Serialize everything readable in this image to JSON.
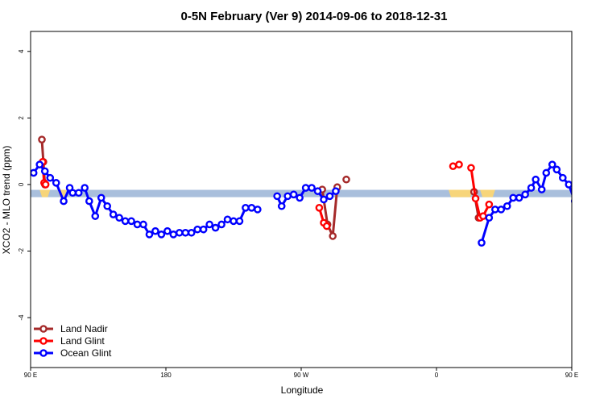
{
  "chart_data": {
    "type": "line",
    "title": "0-5N February (Ver 9)   2014-09-06 to 2018-12-31",
    "xlabel": "Longitude",
    "ylabel": "XCO2 - MLO trend (ppm)",
    "xlim": [
      90,
      450
    ],
    "ylim": [
      -5.5,
      4.6
    ],
    "xticks": [
      {
        "x": 90,
        "label": "90 E"
      },
      {
        "x": 180,
        "label": "180"
      },
      {
        "x": 270,
        "label": "90 W"
      },
      {
        "x": 360,
        "label": "0"
      },
      {
        "x": 450,
        "label": "90 E"
      },
      {
        "x": 540,
        "label": "180"
      }
    ],
    "yticks": [
      -4,
      -2,
      0,
      2,
      4
    ],
    "band": {
      "y_low": -0.38,
      "y_high": -0.16,
      "color": "#a9bfdc",
      "land_color": "#f7d57a",
      "land_segments": [
        [
          96,
          103
        ],
        [
          108,
          114
        ],
        [
          368,
          384
        ],
        [
          389,
          399
        ],
        [
          461,
          464
        ],
        [
          469,
          475
        ]
      ]
    },
    "legend": {
      "position": "bottom-left"
    },
    "series": [
      {
        "name": "Land Nadir",
        "color": "#a52a2a",
        "segments": [
          [
            [
              97.5,
              1.35
            ],
            [
              98.5,
              0.68
            ],
            [
              99.5,
              0.0
            ]
          ],
          [
            [
              284,
              -0.15
            ],
            [
              287.5,
              -1.2
            ],
            [
              291,
              -1.55
            ],
            [
              294,
              -0.08
            ]
          ],
          [
            [
              300,
              0.15
            ]
          ],
          [
            [
              385,
              -0.22
            ],
            [
              388,
              -1.0
            ]
          ],
          [
            [
              464.5,
              1.35
            ],
            [
              465.5,
              0.6
            ],
            [
              466.5,
              0.0
            ]
          ]
        ]
      },
      {
        "name": "Land Glint",
        "color": "#ff0000",
        "segments": [
          [
            [
              98,
              0.68
            ],
            [
              99,
              0.05
            ],
            [
              100,
              0.0
            ]
          ],
          [
            [
              282,
              -0.7
            ],
            [
              285,
              -1.15
            ],
            [
              287,
              -1.25
            ]
          ],
          [
            [
              371,
              0.55
            ],
            [
              375,
              0.6
            ]
          ],
          [
            [
              383,
              0.5
            ],
            [
              386,
              -0.42
            ],
            [
              389,
              -1.0
            ],
            [
              391,
              -0.95
            ],
            [
              395,
              -0.6
            ]
          ],
          [
            [
              465,
              0.65
            ],
            [
              466,
              0.05
            ],
            [
              467,
              0.0
            ]
          ]
        ]
      },
      {
        "name": "Ocean Glint",
        "color": "#0000ff",
        "segments": [
          [
            [
              92,
              0.35
            ],
            [
              96,
              0.6
            ],
            [
              99.5,
              0.4
            ],
            [
              103,
              0.2
            ],
            [
              107,
              0.05
            ],
            [
              112,
              -0.5
            ],
            [
              116,
              -0.1
            ],
            [
              118,
              -0.25
            ],
            [
              122,
              -0.25
            ],
            [
              126,
              -0.1
            ],
            [
              129,
              -0.5
            ],
            [
              133,
              -0.95
            ],
            [
              137,
              -0.4
            ],
            [
              141,
              -0.65
            ],
            [
              145,
              -0.9
            ],
            [
              149,
              -1.0
            ],
            [
              153,
              -1.1
            ],
            [
              157,
              -1.1
            ],
            [
              161,
              -1.2
            ],
            [
              165,
              -1.2
            ],
            [
              169,
              -1.5
            ],
            [
              173,
              -1.4
            ],
            [
              177,
              -1.5
            ],
            [
              181,
              -1.4
            ],
            [
              185,
              -1.5
            ],
            [
              189,
              -1.45
            ],
            [
              193,
              -1.45
            ],
            [
              197,
              -1.45
            ],
            [
              201,
              -1.35
            ],
            [
              205,
              -1.35
            ],
            [
              209,
              -1.2
            ],
            [
              213,
              -1.3
            ],
            [
              217,
              -1.2
            ],
            [
              221,
              -1.05
            ],
            [
              225,
              -1.1
            ],
            [
              229,
              -1.1
            ],
            [
              233,
              -0.7
            ],
            [
              237,
              -0.7
            ],
            [
              241,
              -0.75
            ]
          ],
          [
            [
              254,
              -0.35
            ],
            [
              257,
              -0.65
            ],
            [
              261,
              -0.35
            ],
            [
              265,
              -0.3
            ],
            [
              269,
              -0.4
            ],
            [
              273,
              -0.1
            ],
            [
              277,
              -0.1
            ],
            [
              281,
              -0.2
            ],
            [
              285,
              -0.45
            ],
            [
              289,
              -0.35
            ],
            [
              293,
              -0.2
            ]
          ],
          [
            [
              390,
              -1.75
            ],
            [
              395,
              -1.0
            ],
            [
              399,
              -0.75
            ],
            [
              403,
              -0.75
            ],
            [
              407,
              -0.65
            ],
            [
              411,
              -0.4
            ],
            [
              415,
              -0.4
            ],
            [
              419,
              -0.3
            ],
            [
              423,
              -0.1
            ],
            [
              426,
              0.15
            ],
            [
              430,
              -0.15
            ],
            [
              433,
              0.35
            ],
            [
              437,
              0.6
            ],
            [
              440,
              0.45
            ],
            [
              444,
              0.2
            ],
            [
              448,
              0.0
            ],
            [
              452,
              -0.5
            ],
            [
              455,
              -0.1
            ],
            [
              459,
              -0.25
            ],
            [
              463,
              -0.25
            ],
            [
              467,
              -0.15
            ],
            [
              471,
              -0.5
            ],
            [
              475,
              -0.95
            ],
            [
              479,
              -0.45
            ],
            [
              483,
              -0.7
            ],
            [
              487,
              -0.9
            ],
            [
              491,
              -1.0
            ],
            [
              495,
              -1.1
            ],
            [
              499,
              -1.1
            ]
          ]
        ]
      }
    ]
  }
}
